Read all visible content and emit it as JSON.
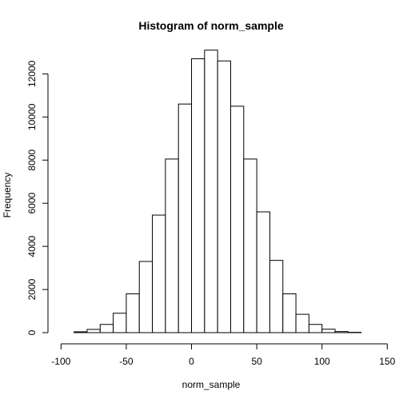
{
  "chart_data": {
    "type": "bar",
    "title": "Histogram of norm_sample",
    "xlabel": "norm_sample",
    "ylabel": "Frequency",
    "xlim": [
      -110,
      140
    ],
    "ylim": [
      0,
      13200
    ],
    "x_ticks": [
      -100,
      -50,
      0,
      50,
      100,
      150
    ],
    "x_tick_labels": [
      "-100",
      "-50",
      "0",
      "50",
      "100",
      "150"
    ],
    "y_ticks": [
      0,
      2000,
      4000,
      6000,
      8000,
      10000,
      12000
    ],
    "y_tick_labels": [
      "0",
      "2000",
      "4000",
      "6000",
      "8000",
      "10000",
      "12000"
    ],
    "bin_width": 10,
    "bins": [
      {
        "start": -90,
        "end": -80,
        "value": 40
      },
      {
        "start": -80,
        "end": -70,
        "value": 150
      },
      {
        "start": -70,
        "end": -60,
        "value": 380
      },
      {
        "start": -60,
        "end": -50,
        "value": 900
      },
      {
        "start": -50,
        "end": -40,
        "value": 1800
      },
      {
        "start": -40,
        "end": -30,
        "value": 3300
      },
      {
        "start": -30,
        "end": -20,
        "value": 5450
      },
      {
        "start": -20,
        "end": -10,
        "value": 8050
      },
      {
        "start": -10,
        "end": 0,
        "value": 10600
      },
      {
        "start": 0,
        "end": 10,
        "value": 12700
      },
      {
        "start": 10,
        "end": 20,
        "value": 13100
      },
      {
        "start": 20,
        "end": 30,
        "value": 12600
      },
      {
        "start": 30,
        "end": 40,
        "value": 10500
      },
      {
        "start": 40,
        "end": 50,
        "value": 8050
      },
      {
        "start": 50,
        "end": 60,
        "value": 5600
      },
      {
        "start": 60,
        "end": 70,
        "value": 3350
      },
      {
        "start": 70,
        "end": 80,
        "value": 1800
      },
      {
        "start": 80,
        "end": 90,
        "value": 850
      },
      {
        "start": 90,
        "end": 100,
        "value": 380
      },
      {
        "start": 100,
        "end": 110,
        "value": 160
      },
      {
        "start": 110,
        "end": 120,
        "value": 50
      },
      {
        "start": 120,
        "end": 130,
        "value": 15
      }
    ]
  }
}
